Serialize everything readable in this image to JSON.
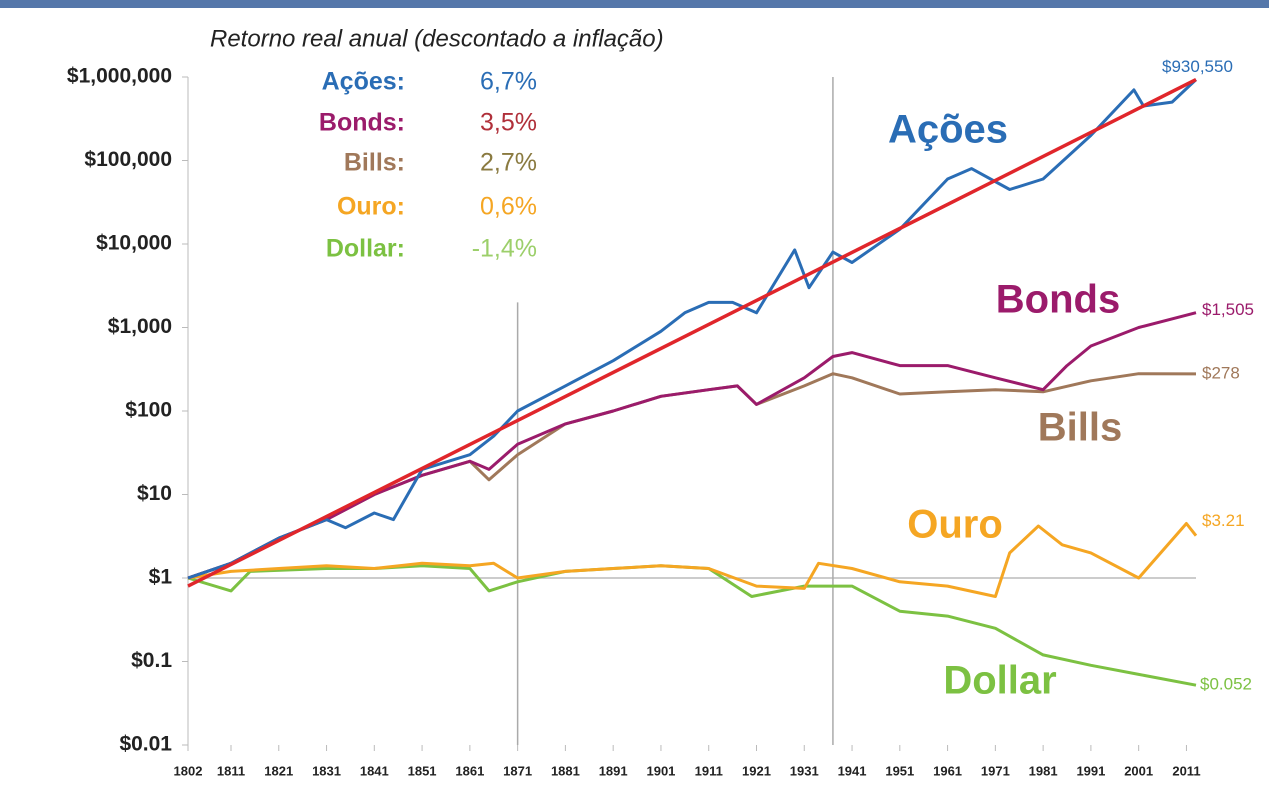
{
  "chart_data": {
    "type": "line",
    "title": "Retorno real anual (descontado a inflação)",
    "log_scale": true,
    "xlim": [
      1802,
      2013
    ],
    "ylim": [
      0.01,
      1000000
    ],
    "xticks": [
      1802,
      1811,
      1821,
      1831,
      1841,
      1851,
      1861,
      1871,
      1881,
      1891,
      1901,
      1911,
      1921,
      1931,
      1941,
      1951,
      1961,
      1971,
      1981,
      1991,
      2001,
      2011
    ],
    "yticks": [
      {
        "value": 1000000,
        "label": "$1,000,000"
      },
      {
        "value": 100000,
        "label": "$100,000"
      },
      {
        "value": 10000,
        "label": "$10,000"
      },
      {
        "value": 1000,
        "label": "$1,000"
      },
      {
        "value": 100,
        "label": "$100"
      },
      {
        "value": 10,
        "label": "$10"
      },
      {
        "value": 1,
        "label": "$1"
      },
      {
        "value": 0.1,
        "label": "$0.1"
      },
      {
        "value": 0.01,
        "label": "$0.01"
      }
    ],
    "vlines": [
      {
        "x": 1871,
        "top": 2000
      },
      {
        "x": 1937,
        "top": 1000000
      }
    ],
    "hline": 1,
    "returns": [
      {
        "label": "Ações:",
        "rate": {
          "value": 6.7,
          "label": "6,7%"
        },
        "color": "#2a6db5",
        "rate_color": "#2a6db5"
      },
      {
        "label": "Bonds:",
        "rate": {
          "value": 3.5,
          "label": "3,5%"
        },
        "color": "#9b1b6b",
        "rate_color": "#b0303a"
      },
      {
        "label": "Bills:",
        "rate": {
          "value": 2.7,
          "label": "2,7%"
        },
        "color": "#a0785a",
        "rate_color": "#8a7a40"
      },
      {
        "label": "Ouro:",
        "rate": {
          "value": 0.6,
          "label": "0,6%"
        },
        "color": "#f5a623",
        "rate_color": "#f5a623"
      },
      {
        "label": "Dollar:",
        "rate": {
          "value": -1.4,
          "label": "-1,4%"
        },
        "color": "#7cc142",
        "rate_color": "#9ccf6a"
      }
    ],
    "series": [
      {
        "name": "Ações",
        "color": "#2a6db5",
        "end_label": "$930,550",
        "x": [
          1802,
          1811,
          1821,
          1831,
          1835,
          1841,
          1845,
          1851,
          1861,
          1866,
          1871,
          1881,
          1891,
          1901,
          1906,
          1911,
          1916,
          1921,
          1929,
          1932,
          1937,
          1941,
          1951,
          1961,
          1966,
          1974,
          1981,
          1991,
          2000,
          2002,
          2008,
          2013
        ],
        "values": [
          1,
          1.5,
          3,
          5,
          4,
          6,
          5,
          20,
          30,
          50,
          100,
          200,
          400,
          900,
          1500,
          2000,
          2000,
          1500,
          8500,
          3000,
          8000,
          6000,
          15000,
          60000,
          80000,
          45000,
          60000,
          200000,
          700000,
          450000,
          500000,
          930550
        ]
      },
      {
        "name": "Bonds",
        "color": "#9b1b6b",
        "end_label": "$1,505",
        "x": [
          1802,
          1811,
          1821,
          1831,
          1841,
          1851,
          1861,
          1865,
          1871,
          1881,
          1891,
          1901,
          1911,
          1917,
          1921,
          1931,
          1937,
          1941,
          1951,
          1961,
          1971,
          1981,
          1986,
          1991,
          2001,
          2013
        ],
        "values": [
          1,
          1.5,
          3,
          5,
          10,
          17,
          25,
          20,
          40,
          70,
          100,
          150,
          180,
          200,
          120,
          250,
          450,
          500,
          350,
          350,
          250,
          180,
          350,
          600,
          1000,
          1505
        ]
      },
      {
        "name": "Bills",
        "color": "#a0785a",
        "end_label": "$278",
        "x": [
          1802,
          1811,
          1821,
          1831,
          1841,
          1851,
          1861,
          1865,
          1871,
          1881,
          1891,
          1901,
          1911,
          1917,
          1921,
          1931,
          1937,
          1941,
          1951,
          1961,
          1971,
          1981,
          1991,
          2001,
          2013
        ],
        "values": [
          1,
          1.5,
          3,
          5,
          10,
          17,
          25,
          15,
          30,
          70,
          100,
          150,
          180,
          200,
          120,
          200,
          280,
          250,
          160,
          170,
          180,
          170,
          230,
          280,
          278
        ]
      },
      {
        "name": "Ouro",
        "color": "#f5a623",
        "end_label": "$3.21",
        "x": [
          1802,
          1811,
          1821,
          1831,
          1841,
          1851,
          1861,
          1866,
          1871,
          1881,
          1891,
          1901,
          1911,
          1921,
          1931,
          1934,
          1941,
          1951,
          1961,
          1971,
          1974,
          1980,
          1985,
          1991,
          2001,
          2011,
          2013
        ],
        "values": [
          1,
          1.2,
          1.3,
          1.4,
          1.3,
          1.5,
          1.4,
          1.5,
          1,
          1.2,
          1.3,
          1.4,
          1.3,
          0.8,
          0.75,
          1.5,
          1.3,
          0.9,
          0.8,
          0.6,
          2,
          4.2,
          2.5,
          2,
          1,
          4.5,
          3.21
        ]
      },
      {
        "name": "Dollar",
        "color": "#7cc142",
        "end_label": "$0.052",
        "x": [
          1802,
          1811,
          1815,
          1831,
          1841,
          1851,
          1861,
          1865,
          1871,
          1881,
          1891,
          1901,
          1911,
          1920,
          1931,
          1941,
          1951,
          1961,
          1971,
          1981,
          1991,
          2001,
          2013
        ],
        "values": [
          1,
          0.7,
          1.2,
          1.3,
          1.3,
          1.4,
          1.3,
          0.7,
          0.9,
          1.2,
          1.3,
          1.4,
          1.3,
          0.6,
          0.8,
          0.8,
          0.4,
          0.35,
          0.25,
          0.12,
          0.09,
          0.07,
          0.052
        ]
      },
      {
        "color": "#e0262b",
        "x": [
          1802,
          2013
        ],
        "values": [
          0.8,
          930550
        ]
      }
    ]
  }
}
